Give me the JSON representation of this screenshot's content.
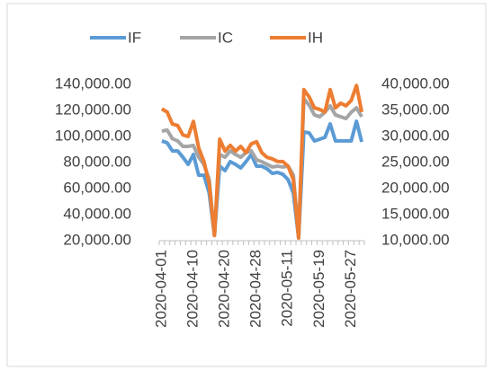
{
  "chart_data": {
    "type": "line",
    "categories": [
      "2020-04-01",
      null,
      null,
      null,
      null,
      null,
      "2020-04-10",
      null,
      null,
      null,
      null,
      null,
      "2020-04-20",
      null,
      null,
      null,
      null,
      null,
      "2020-04-28",
      null,
      null,
      null,
      null,
      null,
      "2020-05-11",
      null,
      null,
      null,
      null,
      null,
      "2020-05-19",
      null,
      null,
      null,
      null,
      null,
      "2020-05-27",
      null,
      null
    ],
    "series": [
      {
        "name": "IF",
        "color": "#5b9bd5",
        "values": [
          96600,
          95200,
          88900,
          88900,
          84100,
          78600,
          86200,
          70300,
          70300,
          56600,
          24100,
          77200,
          73800,
          80700,
          78600,
          75900,
          80700,
          86200,
          77200,
          77200,
          75200,
          71700,
          72400,
          71000,
          66900,
          56600,
          22100,
          103500,
          102800,
          96600,
          97900,
          99300,
          109700,
          96600,
          96600,
          96600,
          96600,
          111700,
          95900
        ]
      },
      {
        "name": "IC",
        "color": "#a5a5a5",
        "values": [
          104100,
          105000,
          98300,
          96600,
          92400,
          92400,
          93100,
          84100,
          78600,
          66900,
          24100,
          86200,
          84100,
          89000,
          86200,
          84100,
          87600,
          89000,
          82100,
          80700,
          78600,
          76600,
          77200,
          76600,
          77200,
          70300,
          23400,
          129000,
          124100,
          116600,
          115200,
          118600,
          123500,
          116600,
          115200,
          113800,
          118600,
          122100,
          115200
        ]
      },
      {
        "name": "IH",
        "color": "#ed7d31",
        "axis": "y2",
        "values": [
          35300,
          34700,
          32400,
          32100,
          30300,
          30000,
          32900,
          27800,
          25200,
          20900,
          11000,
          29500,
          27200,
          28300,
          27200,
          28100,
          26900,
          28600,
          29000,
          26900,
          26000,
          25700,
          25200,
          25200,
          24300,
          21700,
          10500,
          39000,
          37600,
          35500,
          35200,
          34700,
          39000,
          35500,
          36400,
          35900,
          36900,
          39800,
          34700
        ]
      }
    ],
    "ylim": [
      20000,
      140000
    ],
    "yticks": [
      {
        "value": 20000,
        "label": "20,000.00"
      },
      {
        "value": 40000,
        "label": "40,000.00"
      },
      {
        "value": 60000,
        "label": "60,000.00"
      },
      {
        "value": 80000,
        "label": "80,000.00"
      },
      {
        "value": 100000,
        "label": "100,000.00"
      },
      {
        "value": 120000,
        "label": "120,000.00"
      },
      {
        "value": 140000,
        "label": "140,000.00"
      }
    ],
    "y2lim": [
      10000,
      40000
    ],
    "y2ticks": [
      {
        "value": 10000,
        "label": "10,000.00"
      },
      {
        "value": 15000,
        "label": "15,000.00"
      },
      {
        "value": 20000,
        "label": "20,000.00"
      },
      {
        "value": 25000,
        "label": "25,000.00"
      },
      {
        "value": 30000,
        "label": "30,000.00"
      },
      {
        "value": 35000,
        "label": "35,000.00"
      },
      {
        "value": 40000,
        "label": "40,000.00"
      }
    ],
    "legend": "top",
    "grid": false
  }
}
